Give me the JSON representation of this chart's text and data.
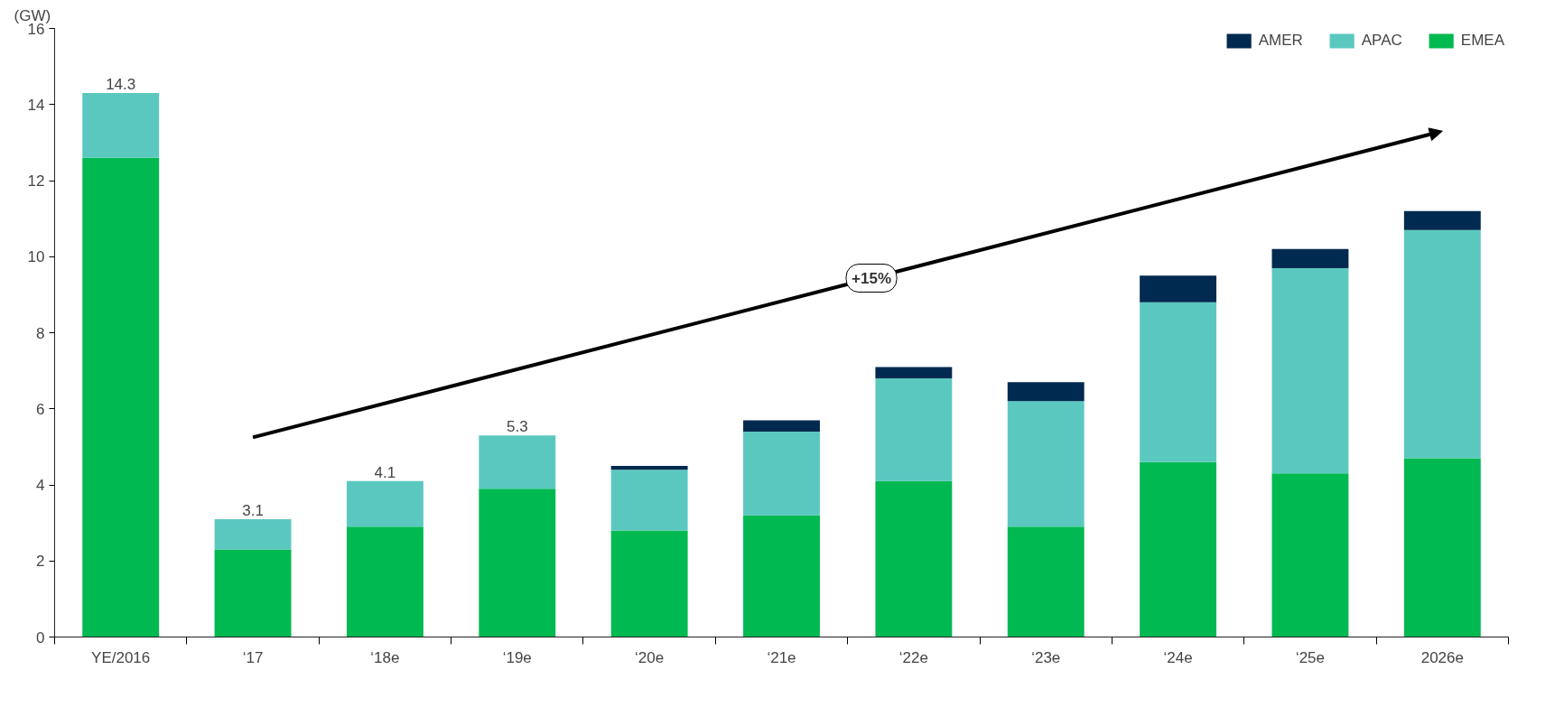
{
  "chart_data": {
    "type": "bar",
    "stacked": true,
    "ylabel": "(GW)",
    "categories": [
      "YE/2016",
      "‘17",
      "‘18e",
      "‘19e",
      "‘20e",
      "‘21e",
      "‘22e",
      "‘23e",
      "‘24e",
      "‘25e",
      "2026e"
    ],
    "series": [
      {
        "name": "EMEA",
        "color": "#00b950",
        "values": [
          12.6,
          2.3,
          2.9,
          3.9,
          2.8,
          3.2,
          4.1,
          2.9,
          4.6,
          4.3,
          4.7
        ]
      },
      {
        "name": "APAC",
        "color": "#5bc8c0",
        "values": [
          1.7,
          0.8,
          1.2,
          1.4,
          1.6,
          2.2,
          2.7,
          3.3,
          4.2,
          5.4,
          6.0
        ]
      },
      {
        "name": "AMER",
        "color": "#002a4f",
        "values": [
          null,
          null,
          null,
          null,
          0.1,
          0.3,
          0.3,
          0.5,
          0.7,
          0.5,
          0.5
        ]
      }
    ],
    "totals": [
      "14.3",
      "3.1",
      "4.1",
      "5.3",
      null,
      null,
      null,
      null,
      null,
      null,
      null
    ],
    "ylim": [
      0,
      16
    ],
    "yticks": [
      0,
      2,
      4,
      6,
      8,
      10,
      12,
      14,
      16
    ],
    "annotations": [
      "+15%"
    ],
    "grid": false,
    "legend": "top right"
  }
}
